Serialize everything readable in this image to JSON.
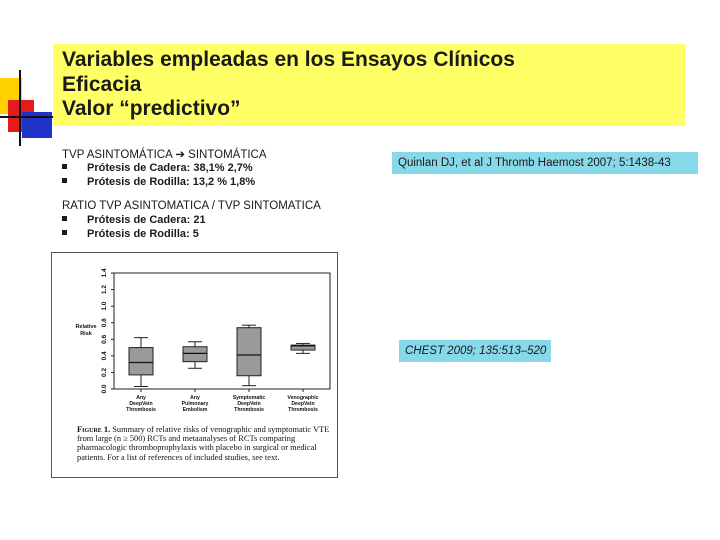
{
  "title": {
    "line1": "Variables empleadas en los Ensayos Clínicos",
    "line2": "Eficacia",
    "line3": "Valor “predictivo”"
  },
  "section1": {
    "heading": "TVP ASINTOMÁTICA ➔ SINTOMÁTICA",
    "bullets": [
      "Prótesis de Cadera: 38,1% 2,7%",
      "Prótesis de Rodilla: 13,2 % 1,8%"
    ]
  },
  "section2": {
    "heading": "RATIO TVP ASINTOMATICA / TVP SINTOMATICA",
    "bullets": [
      "Prótesis de Cadera: 21",
      "Prótesis de Rodilla: 5"
    ]
  },
  "citations": {
    "quinlan": "Quinlan DJ, et al J Thromb Haemost 2007; 5:1438-43",
    "chest": "CHEST 2009; 135:513–520"
  },
  "figure": {
    "caption_label": "Figure 1.",
    "caption_text": "Summary of relative risks of venographic and symptomatic VTE from large (n ≥ 500) RCTs and metaanalyses of RCTs comparing pharmacologic thromboprophylaxis with placebo in surgical or medical patients. For a list of references of included studies, see text."
  },
  "chart_data": {
    "type": "box",
    "ylabel": "Relative Risk",
    "ylim": [
      0.0,
      1.4
    ],
    "yticks": [
      "0.0",
      "0.2",
      "0.4",
      "0.6",
      "0.8",
      "1.0",
      "1.2",
      "1.4"
    ],
    "categories": [
      "Any DeepVein Thrombosis",
      "Any Pulmonary Embolism",
      "Symptomatic DeepVein Thrombosis",
      "Venographic DeepVein Thrombosis"
    ],
    "boxes": [
      {
        "min": 0.03,
        "q1": 0.17,
        "median": 0.32,
        "q3": 0.5,
        "max": 0.62
      },
      {
        "min": 0.25,
        "q1": 0.33,
        "median": 0.43,
        "q3": 0.51,
        "max": 0.57
      },
      {
        "min": 0.04,
        "q1": 0.16,
        "median": 0.41,
        "q3": 0.74,
        "max": 0.77
      },
      {
        "min": 0.43,
        "q1": 0.47,
        "median": 0.52,
        "q3": 0.53,
        "max": 0.55
      }
    ],
    "colors": {
      "box": "#9a9a9a"
    }
  }
}
